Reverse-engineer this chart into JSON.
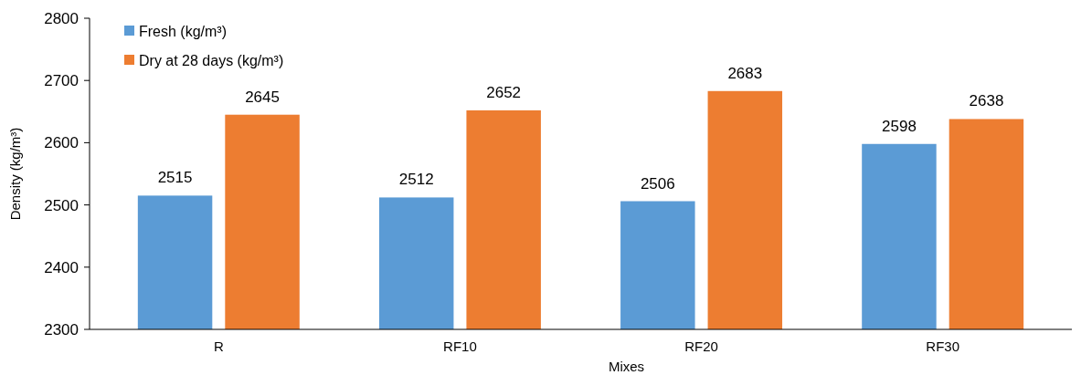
{
  "chart_data": {
    "type": "bar",
    "xlabel": "Mixes",
    "ylabel": "Density (kg/m³)",
    "categories": [
      "R",
      "RF10",
      "RF20",
      "RF30"
    ],
    "series": [
      {
        "name": "Fresh (kg/m³)",
        "color": "#5b9bd5",
        "values": [
          2515,
          2512,
          2506,
          2598
        ]
      },
      {
        "name": "Dry at 28 days (kg/m³)",
        "color": "#ed7d31",
        "values": [
          2645,
          2652,
          2683,
          2638
        ]
      }
    ],
    "ylim": [
      2300,
      2800
    ],
    "yticks": [
      2300,
      2400,
      2500,
      2600,
      2700,
      2800
    ],
    "grid": false,
    "legend": "top left",
    "data_labels": true
  }
}
